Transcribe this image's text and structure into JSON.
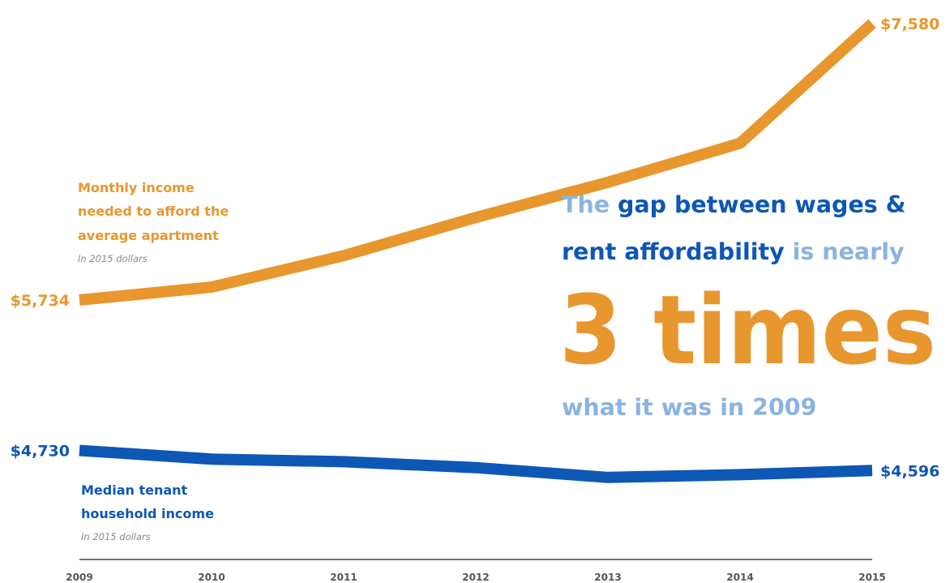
{
  "chart_data": {
    "type": "line",
    "x": [
      "2009",
      "2010",
      "2011",
      "2012",
      "2013",
      "2014",
      "2015"
    ],
    "series": [
      {
        "name": "Monthly income needed to afford the average apartment",
        "name_lines": [
          "Monthly income",
          "needed to afford the",
          "average apartment"
        ],
        "note": "In 2015 dollars",
        "color": "#E8962E",
        "values": [
          5734,
          5820,
          6030,
          6285,
          6520,
          6780,
          7580
        ],
        "start_label": "$5,734",
        "end_label": "$7,580"
      },
      {
        "name": "Median tenant household income",
        "name_lines": [
          "Median tenant",
          "household income"
        ],
        "note": "In 2015 dollars",
        "color": "#0D57B5",
        "values": [
          4730,
          4672,
          4655,
          4615,
          4550,
          4568,
          4596
        ],
        "start_label": "$4,730",
        "end_label": "$4,596"
      }
    ],
    "callout": {
      "line1": [
        {
          "text": "The ",
          "color": "#8BB3E0"
        },
        {
          "text": "gap between wages &",
          "color": "#0D57B5"
        }
      ],
      "line2": [
        {
          "text": "rent affordability",
          "color": "#0D57B5"
        },
        {
          "text": " is nearly",
          "color": "#8BB3E0"
        }
      ],
      "big": {
        "text": "3 times",
        "color": "#E8962E"
      },
      "line3": {
        "text": "what it was in 2009",
        "color": "#8BB3E0"
      }
    },
    "axis_color": "#444444"
  }
}
